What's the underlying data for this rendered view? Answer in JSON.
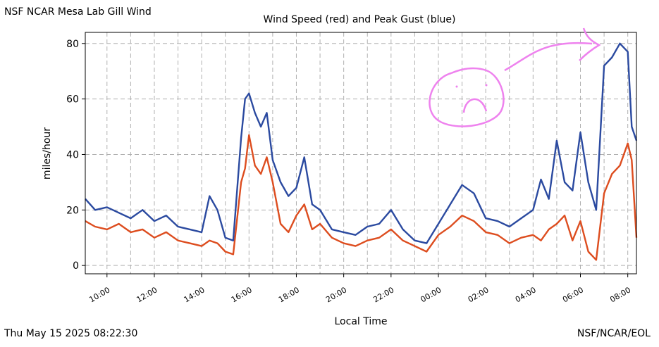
{
  "header": {
    "station": "NSF NCAR Mesa Lab Gill Wind"
  },
  "footer": {
    "timestamp": "Thu May 15 2025 08:22:30",
    "credit": "NSF/NCAR/EOL"
  },
  "colors": {
    "speed": "#dd4d1f",
    "gust": "#2b4aa0",
    "grid": "#b0b0b0",
    "annotation": "#ee82ee"
  },
  "chart_data": {
    "type": "line",
    "title": "Wind Speed (red) and Peak Gust (blue)",
    "xlabel": "Local Time",
    "ylabel": "miles/hour",
    "x_ticks": [
      "10:00",
      "12:00",
      "14:00",
      "16:00",
      "18:00",
      "20:00",
      "22:00",
      "00:00",
      "02:00",
      "04:00",
      "06:00",
      "08:00"
    ],
    "x_start": "09:05",
    "x_end": "08:22",
    "ylim": [
      -3,
      84
    ],
    "y_ticks": [
      0,
      20,
      40,
      60,
      80
    ],
    "grid": true,
    "series": [
      {
        "name": "Wind Speed",
        "color": "red",
        "x": [
          "09:05",
          "09:30",
          "10:00",
          "10:30",
          "11:00",
          "11:30",
          "12:00",
          "12:30",
          "13:00",
          "13:30",
          "14:00",
          "14:20",
          "14:40",
          "15:00",
          "15:20",
          "15:40",
          "15:50",
          "16:00",
          "16:15",
          "16:30",
          "16:45",
          "17:00",
          "17:20",
          "17:40",
          "18:00",
          "18:20",
          "18:40",
          "19:00",
          "19:30",
          "20:00",
          "20:30",
          "21:00",
          "21:30",
          "22:00",
          "22:30",
          "23:00",
          "23:30",
          "00:00",
          "00:30",
          "01:00",
          "01:30",
          "02:00",
          "02:30",
          "03:00",
          "03:30",
          "04:00",
          "04:20",
          "04:40",
          "05:00",
          "05:20",
          "05:40",
          "06:00",
          "06:20",
          "06:40",
          "07:00",
          "07:20",
          "07:40",
          "08:00",
          "08:10",
          "08:22"
        ],
        "values": [
          16,
          14,
          13,
          15,
          12,
          13,
          10,
          12,
          9,
          8,
          7,
          9,
          8,
          5,
          4,
          30,
          35,
          47,
          36,
          33,
          39,
          30,
          15,
          12,
          18,
          22,
          13,
          15,
          10,
          8,
          7,
          9,
          10,
          13,
          9,
          7,
          5,
          11,
          14,
          18,
          16,
          12,
          11,
          8,
          10,
          11,
          9,
          13,
          15,
          18,
          9,
          16,
          5,
          2,
          26,
          33,
          36,
          44,
          38,
          10
        ]
      },
      {
        "name": "Peak Gust",
        "color": "blue",
        "x": [
          "09:05",
          "09:30",
          "10:00",
          "10:30",
          "11:00",
          "11:30",
          "12:00",
          "12:30",
          "13:00",
          "13:30",
          "14:00",
          "14:20",
          "14:40",
          "15:00",
          "15:20",
          "15:40",
          "15:50",
          "16:00",
          "16:15",
          "16:30",
          "16:45",
          "17:00",
          "17:20",
          "17:40",
          "18:00",
          "18:20",
          "18:40",
          "19:00",
          "19:30",
          "20:00",
          "20:30",
          "21:00",
          "21:30",
          "22:00",
          "22:30",
          "23:00",
          "23:30",
          "00:00",
          "00:30",
          "01:00",
          "01:30",
          "02:00",
          "02:30",
          "03:00",
          "03:30",
          "04:00",
          "04:20",
          "04:40",
          "05:00",
          "05:20",
          "05:40",
          "06:00",
          "06:20",
          "06:40",
          "07:00",
          "07:20",
          "07:40",
          "08:00",
          "08:10",
          "08:22"
        ],
        "values": [
          24,
          20,
          21,
          19,
          17,
          20,
          16,
          18,
          14,
          13,
          12,
          25,
          20,
          10,
          9,
          46,
          60,
          62,
          55,
          50,
          55,
          38,
          30,
          25,
          28,
          39,
          22,
          20,
          13,
          12,
          11,
          14,
          15,
          20,
          13,
          9,
          8,
          15,
          22,
          29,
          26,
          17,
          16,
          14,
          17,
          20,
          31,
          24,
          45,
          30,
          27,
          48,
          30,
          20,
          72,
          75,
          80,
          77,
          50,
          45
        ]
      }
    ],
    "annotations": [
      "sad-face-drawing",
      "arrow-drawing"
    ]
  }
}
